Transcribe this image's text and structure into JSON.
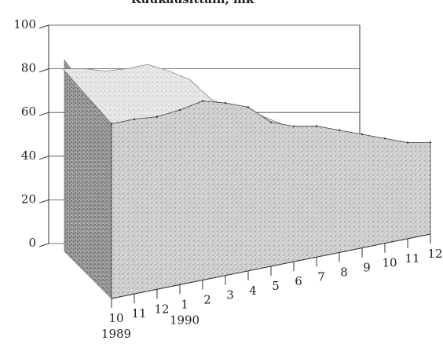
{
  "chart_data": {
    "type": "area",
    "title": "Kuukausittain, mk",
    "xlabel": "",
    "ylabel": "",
    "ylim": [
      0,
      100
    ],
    "y_ticks": [
      "0",
      "20",
      "40",
      "60",
      "80",
      "100"
    ],
    "categories": [
      "10",
      "11",
      "12",
      "1",
      "2",
      "3",
      "4",
      "5",
      "6",
      "7",
      "8",
      "9",
      "10",
      "11",
      "12"
    ],
    "year_labels": [
      {
        "label": "1989",
        "index": 0
      },
      {
        "label": "1990",
        "index": 3
      }
    ],
    "series": [
      {
        "values": [
          80,
          80,
          79,
          80,
          82,
          79,
          75,
          66,
          62,
          60,
          56,
          52,
          48,
          44,
          42
        ]
      }
    ],
    "grid": true,
    "style": "3d"
  }
}
